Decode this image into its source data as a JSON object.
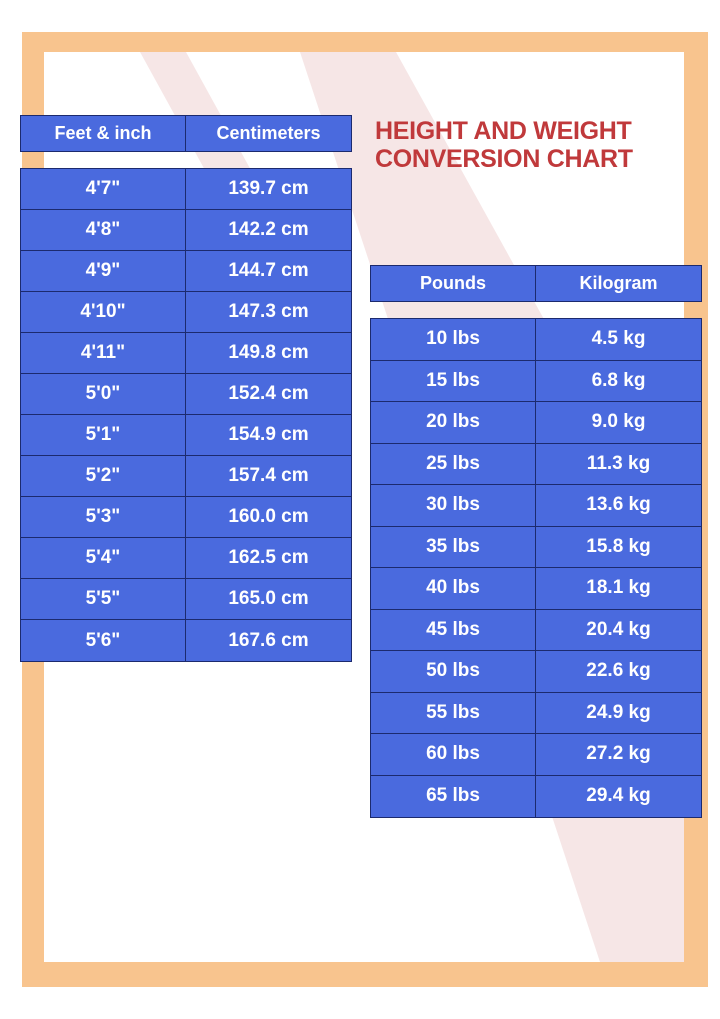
{
  "title": [
    "HEIGHT AND WEIGHT",
    "CONVERSION CHART"
  ],
  "colors": {
    "frame": "#f8c48e",
    "table": "#4a6ade",
    "border": "#1c2a6e",
    "title": "#c0393b",
    "stripe": "#f6e6e6"
  },
  "height_table": {
    "headers": [
      "Feet & inch",
      "Centimeters"
    ],
    "rows": [
      [
        "4'7\"",
        "139.7 cm"
      ],
      [
        "4'8\"",
        "142.2 cm"
      ],
      [
        "4'9\"",
        "144.7 cm"
      ],
      [
        "4'10\"",
        "147.3 cm"
      ],
      [
        "4'11\"",
        "149.8 cm"
      ],
      [
        "5'0\"",
        "152.4 cm"
      ],
      [
        "5'1\"",
        "154.9 cm"
      ],
      [
        "5'2\"",
        "157.4 cm"
      ],
      [
        "5'3\"",
        "160.0 cm"
      ],
      [
        "5'4\"",
        "162.5 cm"
      ],
      [
        "5'5\"",
        "165.0 cm"
      ],
      [
        "5'6\"",
        "167.6 cm"
      ]
    ]
  },
  "weight_table": {
    "headers": [
      "Pounds",
      "Kilogram"
    ],
    "rows": [
      [
        "10 lbs",
        "4.5 kg"
      ],
      [
        "15 lbs",
        "6.8 kg"
      ],
      [
        "20 lbs",
        "9.0 kg"
      ],
      [
        "25 lbs",
        "11.3 kg"
      ],
      [
        "30 lbs",
        "13.6 kg"
      ],
      [
        "35 lbs",
        "15.8 kg"
      ],
      [
        "40 lbs",
        "18.1 kg"
      ],
      [
        "45 lbs",
        "20.4 kg"
      ],
      [
        "50 lbs",
        "22.6 kg"
      ],
      [
        "55 lbs",
        "24.9 kg"
      ],
      [
        "60 lbs",
        "27.2 kg"
      ],
      [
        "65 lbs",
        "29.4 kg"
      ]
    ]
  }
}
